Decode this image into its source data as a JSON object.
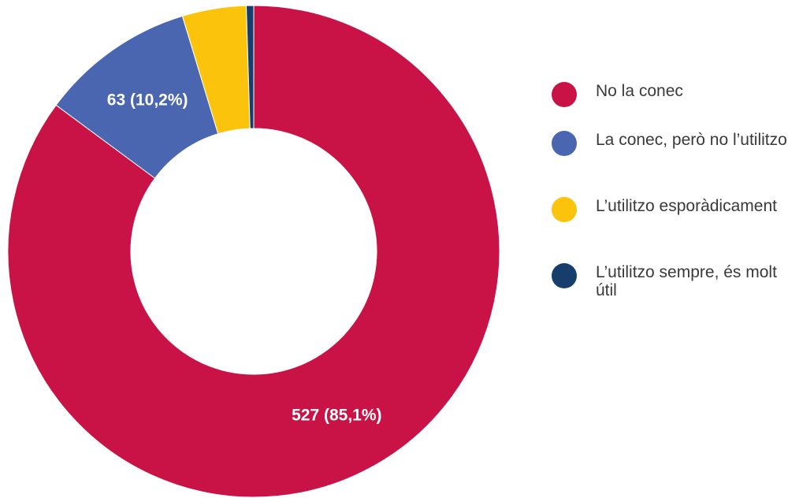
{
  "chart_data": {
    "type": "pie",
    "donut": true,
    "categories": [
      "No la conec",
      "La conec, però no l’utilitzo",
      "L’utilitzo esporàdicament",
      "L’utilitzo sempre, és molt útil"
    ],
    "values": [
      527,
      63,
      26,
      3
    ],
    "colors": [
      "#c91346",
      "#4a66b0",
      "#fbc30c",
      "#163e6c"
    ],
    "data_labels": [
      "527 (85,1%)",
      "63 (10,2%)",
      "",
      ""
    ],
    "legend_position": "right"
  }
}
